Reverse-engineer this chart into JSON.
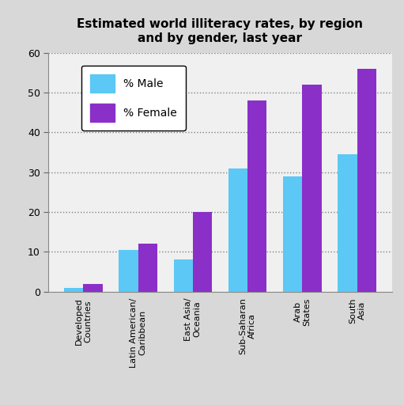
{
  "title": "Estimated world illiteracy rates, by region\nand by gender, last year",
  "categories": [
    "Developed\nCountries",
    "Latin American/\nCaribbean",
    "East Asia/\nOceania",
    "Sub-Saharan\nAfrica",
    "Arab\nStates",
    "South\nAsia"
  ],
  "male_values": [
    1,
    10.5,
    8,
    31,
    29,
    34.5
  ],
  "female_values": [
    2,
    12,
    20,
    48,
    52,
    56
  ],
  "male_color": "#5BC8F5",
  "female_color": "#8B2FC9",
  "background_color": "#D8D8D8",
  "plot_bg_color": "#F0F0F0",
  "ylim": [
    0,
    60
  ],
  "yticks": [
    0,
    10,
    20,
    30,
    40,
    50,
    60
  ],
  "title_fontsize": 11,
  "legend_labels": [
    "% Male",
    "% Female"
  ],
  "bar_width": 0.35
}
